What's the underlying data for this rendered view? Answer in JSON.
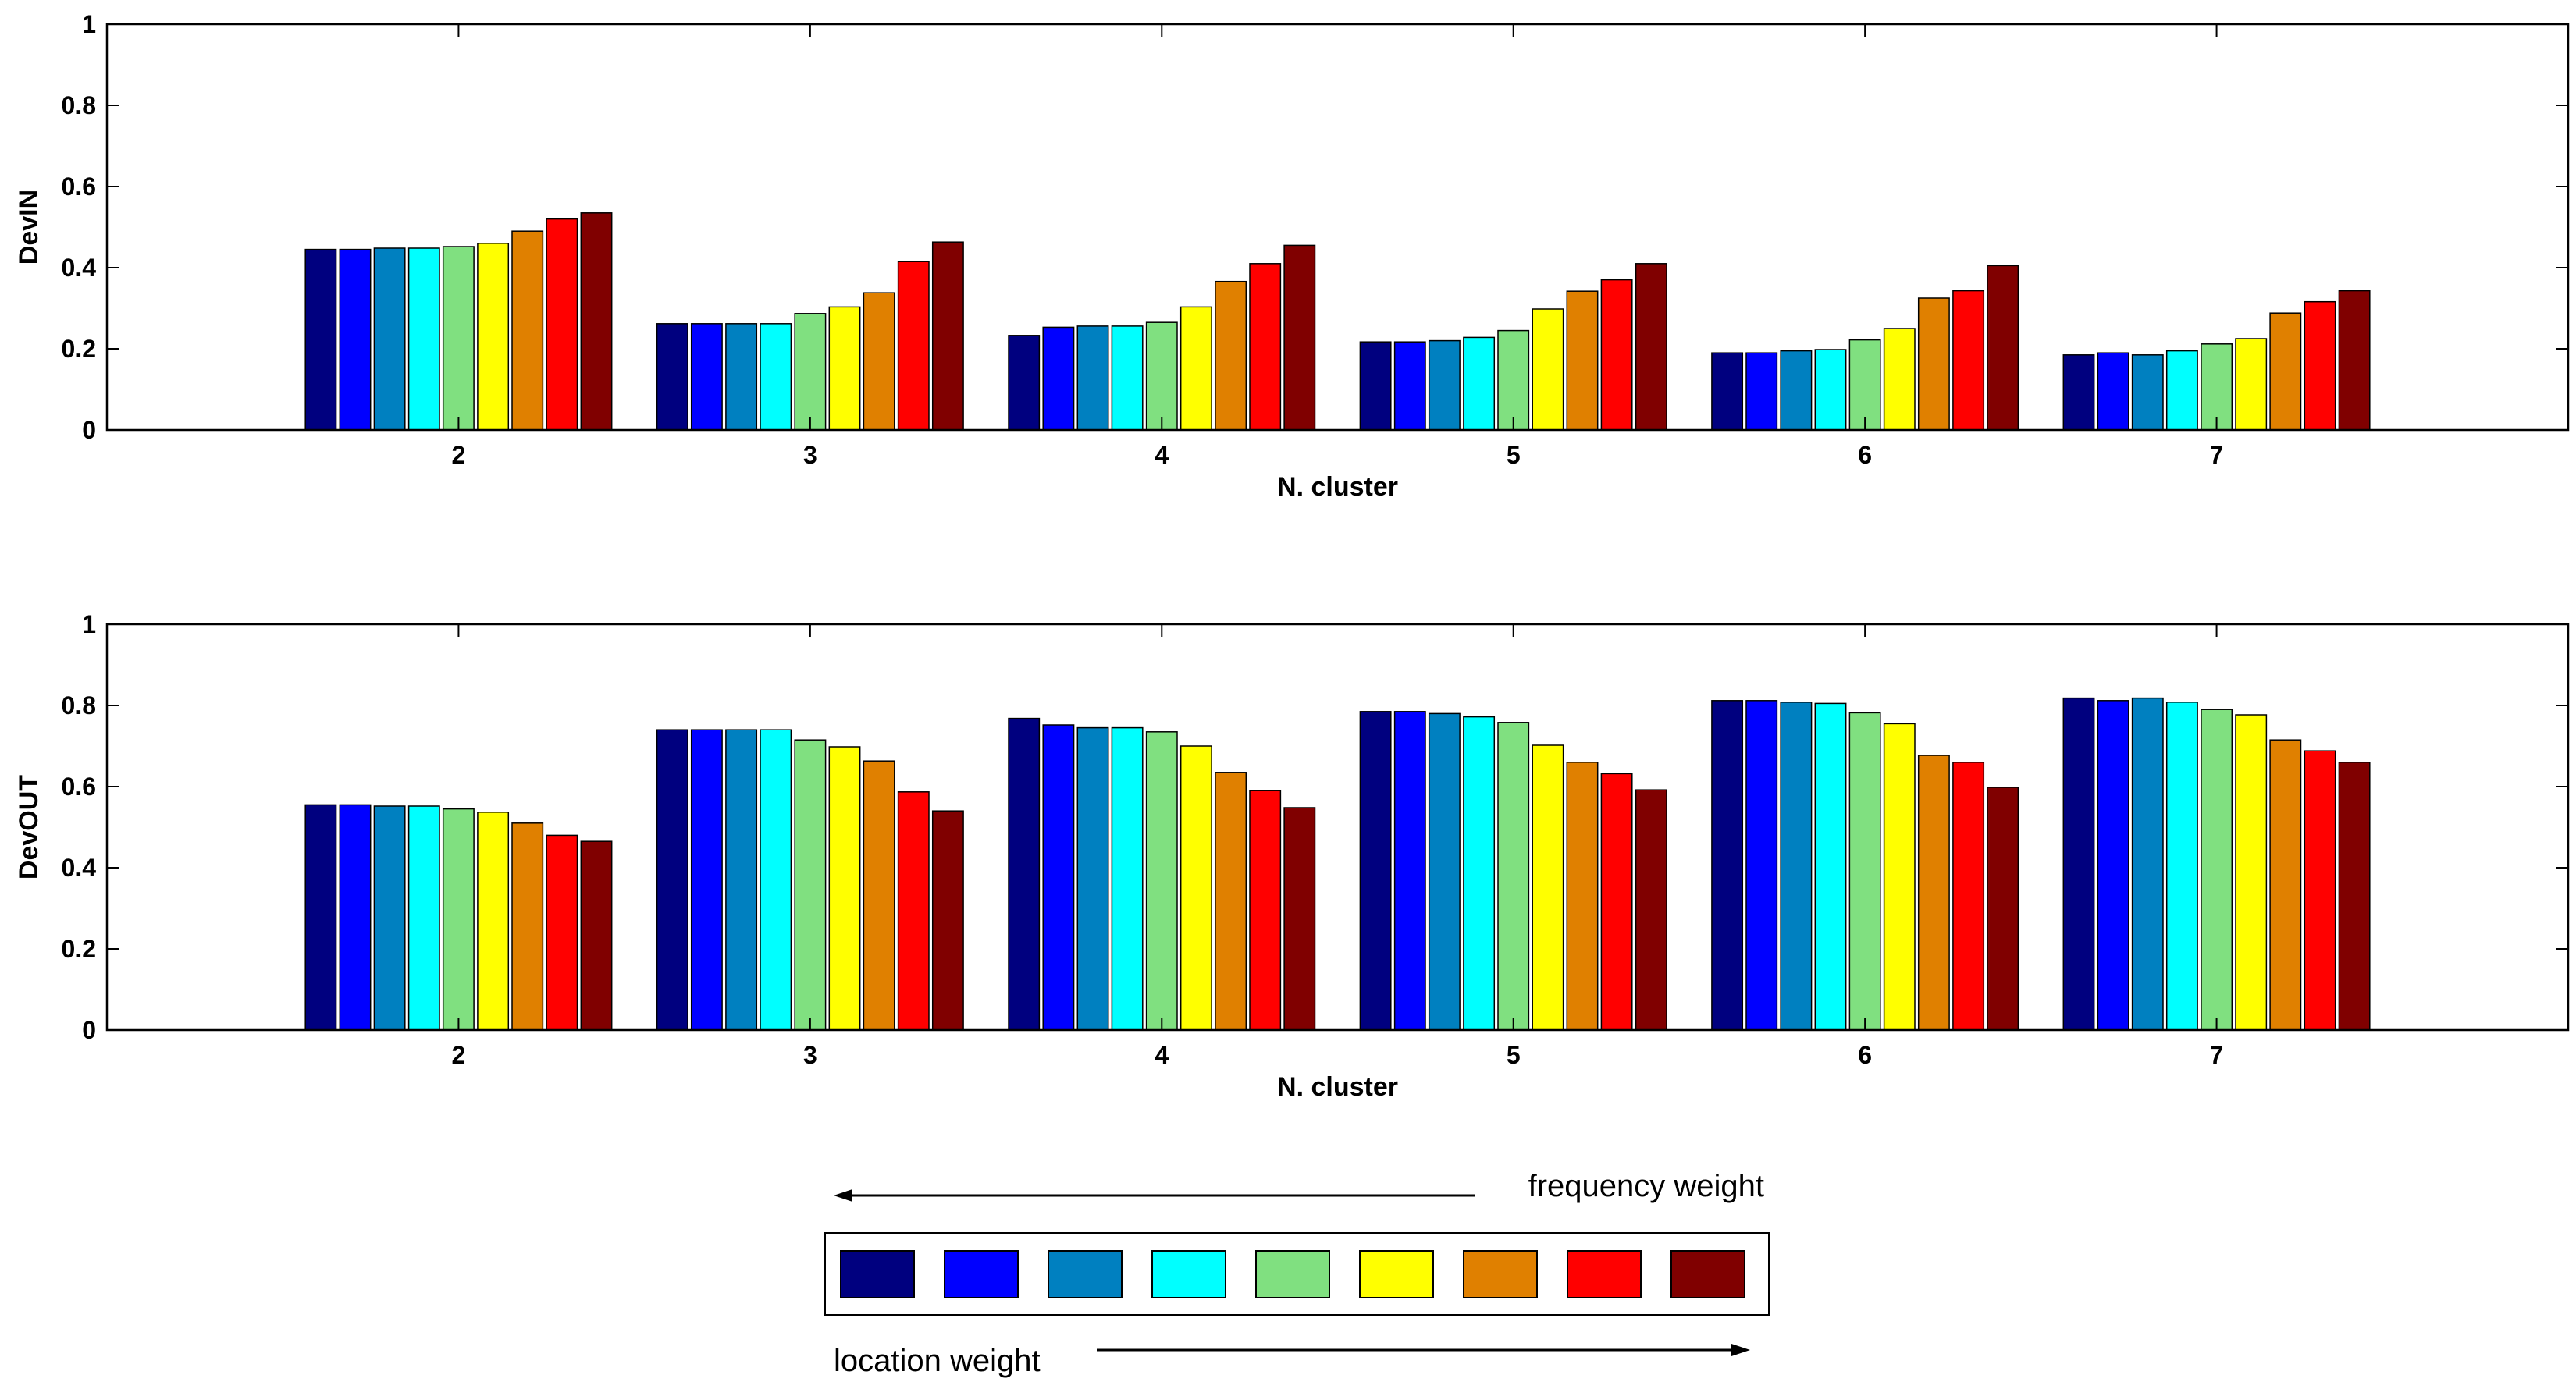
{
  "chart_data": [
    {
      "type": "bar",
      "ylabel": "DevIN",
      "xlabel": "N. cluster",
      "ylim": [
        0,
        1
      ],
      "yticks": [
        "0",
        "0.2",
        "0.4",
        "0.6",
        "0.8",
        "1"
      ],
      "categories": [
        "2",
        "3",
        "4",
        "5",
        "6",
        "7"
      ],
      "grid": false,
      "series": [
        {
          "values": [
            0.445,
            0.262,
            0.233,
            0.217,
            0.19,
            0.185
          ]
        },
        {
          "values": [
            0.445,
            0.262,
            0.253,
            0.217,
            0.19,
            0.19
          ]
        },
        {
          "values": [
            0.448,
            0.262,
            0.256,
            0.22,
            0.195,
            0.185
          ]
        },
        {
          "values": [
            0.448,
            0.262,
            0.256,
            0.228,
            0.198,
            0.195
          ]
        },
        {
          "values": [
            0.452,
            0.287,
            0.265,
            0.245,
            0.222,
            0.212
          ]
        },
        {
          "values": [
            0.46,
            0.303,
            0.303,
            0.298,
            0.25,
            0.225
          ]
        },
        {
          "values": [
            0.49,
            0.338,
            0.366,
            0.342,
            0.325,
            0.288
          ]
        },
        {
          "values": [
            0.52,
            0.415,
            0.41,
            0.37,
            0.343,
            0.316
          ]
        },
        {
          "values": [
            0.535,
            0.463,
            0.455,
            0.41,
            0.405,
            0.343
          ]
        }
      ]
    },
    {
      "type": "bar",
      "ylabel": "DevOUT",
      "xlabel": "N. cluster",
      "ylim": [
        0,
        1
      ],
      "yticks": [
        "0",
        "0.2",
        "0.4",
        "0.6",
        "0.8",
        "1"
      ],
      "categories": [
        "2",
        "3",
        "4",
        "5",
        "6",
        "7"
      ],
      "grid": false,
      "series": [
        {
          "values": [
            0.555,
            0.74,
            0.768,
            0.785,
            0.812,
            0.818
          ]
        },
        {
          "values": [
            0.555,
            0.74,
            0.752,
            0.785,
            0.812,
            0.812
          ]
        },
        {
          "values": [
            0.552,
            0.74,
            0.745,
            0.78,
            0.808,
            0.818
          ]
        },
        {
          "values": [
            0.552,
            0.74,
            0.745,
            0.772,
            0.805,
            0.808
          ]
        },
        {
          "values": [
            0.545,
            0.715,
            0.735,
            0.758,
            0.782,
            0.79
          ]
        },
        {
          "values": [
            0.537,
            0.698,
            0.7,
            0.702,
            0.755,
            0.777
          ]
        },
        {
          "values": [
            0.51,
            0.663,
            0.635,
            0.66,
            0.677,
            0.715
          ]
        },
        {
          "values": [
            0.48,
            0.587,
            0.59,
            0.632,
            0.66,
            0.688
          ]
        },
        {
          "values": [
            0.465,
            0.54,
            0.548,
            0.592,
            0.598,
            0.66
          ]
        }
      ]
    }
  ],
  "colors": [
    "#00007f",
    "#0000ff",
    "#0080c0",
    "#00ffff",
    "#80e080",
    "#ffff00",
    "#e08000",
    "#ff0000",
    "#800000"
  ],
  "legend": {
    "top_label": "frequency weight",
    "bottom_label": "location weight"
  }
}
